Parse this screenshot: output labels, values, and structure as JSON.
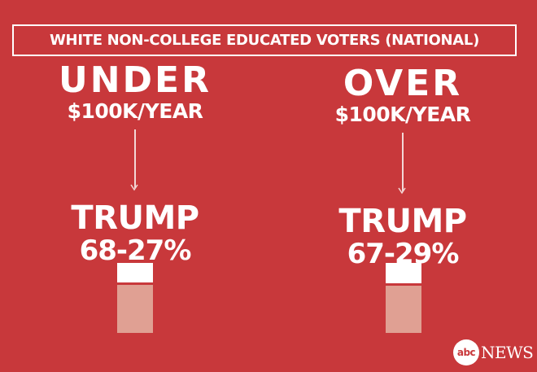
{
  "title": "WHITE NON-COLLEGE EDUCATED VOTERS (NATIONAL)",
  "groups": [
    {
      "label": "UNDER",
      "sublabel": "$100K/YEAR",
      "winner": "TRUMP",
      "score": "68-27%"
    },
    {
      "label": "OVER",
      "sublabel": "$100K/YEAR",
      "winner": "TRUMP",
      "score": "67-29%"
    }
  ],
  "logo": {
    "mark": "abc",
    "text": "NEWS"
  },
  "colors": {
    "background": "#c8383b",
    "trump": "#e0a093",
    "other": "#ffffff",
    "arrow": "#f3d7d6"
  },
  "chart_data": {
    "type": "bar",
    "categories": [
      "UNDER $100K/YEAR",
      "OVER $100K/YEAR"
    ],
    "series": [
      {
        "name": "TRUMP",
        "values": [
          68,
          67
        ]
      },
      {
        "values": [
          27,
          29
        ]
      }
    ],
    "stacked": true,
    "ylim": [
      0,
      100
    ]
  }
}
